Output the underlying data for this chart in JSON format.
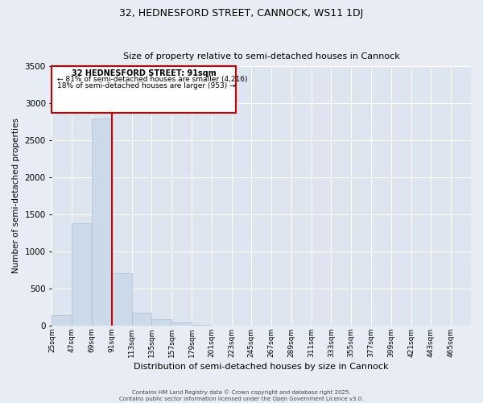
{
  "title": "32, HEDNESFORD STREET, CANNOCK, WS11 1DJ",
  "subtitle": "Size of property relative to semi-detached houses in Cannock",
  "xlabel": "Distribution of semi-detached houses by size in Cannock",
  "ylabel": "Number of semi-detached properties",
  "bar_color": "#ccd9e8",
  "bar_edgecolor": "#aabdd4",
  "fig_bg_color": "#e8edf5",
  "ax_bg_color": "#dde5f0",
  "grid_color": "white",
  "property_line_x": 91,
  "bin_width": 22,
  "bins": [
    25,
    47,
    69,
    91,
    113,
    135,
    157,
    179,
    201,
    223,
    245,
    267,
    289,
    311,
    333,
    355,
    377,
    399,
    421,
    443,
    465
  ],
  "counts": [
    140,
    1380,
    2790,
    700,
    175,
    90,
    40,
    5,
    0,
    0,
    0,
    0,
    0,
    0,
    0,
    0,
    0,
    0,
    0,
    0
  ],
  "annotation_title": "32 HEDNESFORD STREET: 91sqm",
  "annotation_line1": "← 81% of semi-detached houses are smaller (4,216)",
  "annotation_line2": "18% of semi-detached houses are larger (953) →",
  "ylim": [
    0,
    3500
  ],
  "yticks": [
    0,
    500,
    1000,
    1500,
    2000,
    2500,
    3000,
    3500
  ],
  "footer1": "Contains HM Land Registry data © Crown copyright and database right 2025.",
  "footer2": "Contains public sector information licensed under the Open Government Licence v3.0.",
  "title_fontsize": 9,
  "subtitle_fontsize": 8,
  "xlabel_fontsize": 8,
  "ylabel_fontsize": 7.5,
  "xtick_fontsize": 6.5,
  "ytick_fontsize": 7.5,
  "footer_fontsize": 5,
  "ann_title_fontsize": 7,
  "ann_text_fontsize": 6.5
}
